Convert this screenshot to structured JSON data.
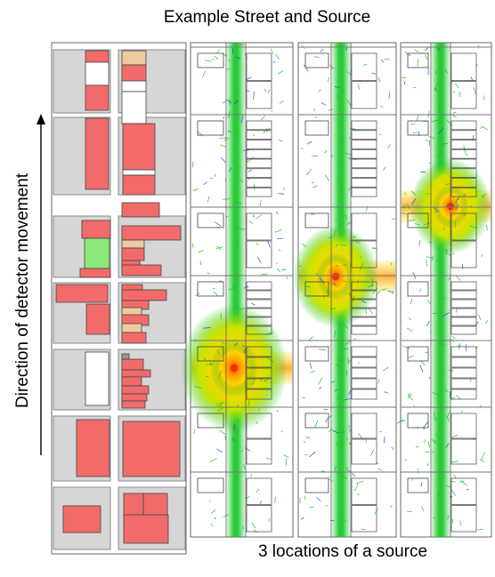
{
  "figure": {
    "title": "Example Street and Source",
    "subtitle": "3 locations of a source",
    "ylabel": "Direction of detector movement"
  },
  "colors": {
    "building": "#f26b6b",
    "building_alt": "#efc9a0",
    "green_building": "#8ce87a",
    "ground": "#d6d6d6",
    "map_border": "#666666",
    "street_bg": "#ffffff",
    "plume_core": "#ff2a00",
    "plume_mid": "#ffd400",
    "plume_outer": "#11c421",
    "track_blue": "#1a4fd6"
  },
  "panels": [
    {
      "name": "street-map",
      "type": "map"
    },
    {
      "name": "source-location-1",
      "type": "plume",
      "source_level": "low"
    },
    {
      "name": "source-location-2",
      "type": "plume",
      "source_level": "middle"
    },
    {
      "name": "source-location-3",
      "type": "plume",
      "source_level": "high"
    }
  ]
}
